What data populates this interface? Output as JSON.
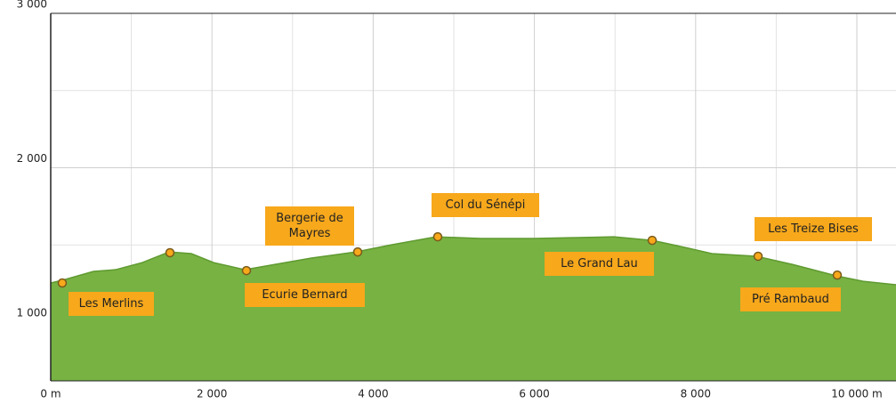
{
  "chart_data": {
    "type": "area",
    "color": "#77b243",
    "marker_color": "#f7a81b",
    "grid": true,
    "xlim": [
      0,
      10500
    ],
    "xticks": [
      {
        "value": 0,
        "label": "0 m"
      },
      {
        "value": 2000,
        "label": "2 000"
      },
      {
        "value": 4000,
        "label": "4 000"
      },
      {
        "value": 6000,
        "label": "6 000"
      },
      {
        "value": 8000,
        "label": "8 000"
      },
      {
        "value": 10000,
        "label": "10 000 m"
      }
    ],
    "xminor_ticks": [
      1000,
      3000,
      5000,
      7000,
      9000
    ],
    "ylim": [
      620,
      3000
    ],
    "yticks": [
      {
        "value": 1000,
        "label": "1 000"
      },
      {
        "value": 2000,
        "label": "2 000"
      },
      {
        "value": 3000,
        "label": "3 000"
      }
    ],
    "yminor_ticks": [
      1500,
      2500
    ],
    "x": [
      0,
      143,
      530,
      806,
      1137,
      1468,
      1744,
      2020,
      2406,
      2792,
      3234,
      3786,
      4227,
      4779,
      5331,
      5993,
      6545,
      6987,
      7461,
      7870,
      8201,
      8753,
      9194,
      9746,
      10077,
      10486
    ],
    "values": [
      1254,
      1271,
      1329,
      1340,
      1386,
      1455,
      1444,
      1386,
      1340,
      1375,
      1415,
      1455,
      1501,
      1553,
      1542,
      1542,
      1548,
      1553,
      1530,
      1484,
      1444,
      1427,
      1375,
      1300,
      1265,
      1242
    ],
    "waypoints": [
      {
        "name": "Les Merlins",
        "x": 143,
        "elevation": 1254
      },
      {
        "name": "Les Merlins",
        "x": 1479,
        "elevation": 1450
      },
      {
        "name": "Ecurie Bernard",
        "x": 2428,
        "elevation": 1334
      },
      {
        "name": "Bergerie de Mayres",
        "x": 3808,
        "elevation": 1455
      },
      {
        "name": "Col du Sénépi",
        "x": 4801,
        "elevation": 1553
      },
      {
        "name": "Le Grand Lau",
        "x": 7461,
        "elevation": 1530
      },
      {
        "name": "Les Treize Bises",
        "x": 8775,
        "elevation": 1427
      },
      {
        "name": "Pré Rambaud",
        "x": 9757,
        "elevation": 1305
      }
    ]
  }
}
